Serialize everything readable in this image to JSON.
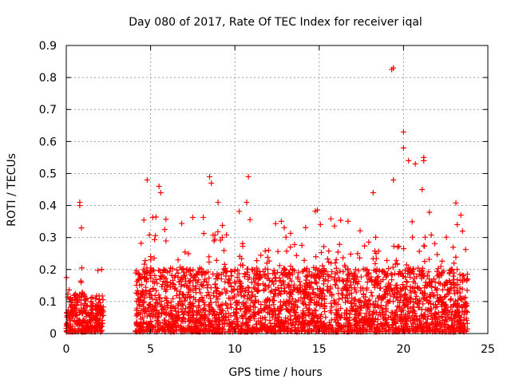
{
  "chart_data": {
    "type": "scatter",
    "title": "Day 080 of 2017, Rate Of TEC Index for receiver iqal",
    "xlabel": "GPS time / hours",
    "ylabel": "ROTI / TECUs",
    "xlim": [
      0,
      25
    ],
    "ylim": [
      0,
      0.9
    ],
    "x_ticks": [
      0,
      5,
      10,
      15,
      20,
      25
    ],
    "x_tick_labels": [
      "0",
      "5",
      "10",
      "15",
      "20",
      "25"
    ],
    "y_ticks": [
      0,
      0.1,
      0.2,
      0.3,
      0.4,
      0.5,
      0.6,
      0.7,
      0.8,
      0.9
    ],
    "y_tick_labels": [
      "0",
      "0.1",
      "0.2",
      "0.3",
      "0.4",
      "0.5",
      "0.6",
      "0.7",
      "0.8",
      "0.9"
    ],
    "grid": true,
    "marker": "+",
    "color": "#ff0000",
    "series": [
      {
        "name": "ROTI",
        "segments": [
          {
            "x_start": 0.0,
            "x_end": 2.2,
            "typical_max": 0.12
          },
          {
            "x_start": 4.1,
            "x_end": 23.8,
            "typical_max": 0.2
          }
        ],
        "notable_points": [
          [
            0.8,
            0.41
          ],
          [
            0.8,
            0.4
          ],
          [
            0.9,
            0.33
          ],
          [
            2.1,
            0.2
          ],
          [
            4.8,
            0.48
          ],
          [
            5.5,
            0.46
          ],
          [
            5.6,
            0.44
          ],
          [
            8.5,
            0.49
          ],
          [
            8.6,
            0.47
          ],
          [
            9.0,
            0.41
          ],
          [
            10.8,
            0.49
          ],
          [
            10.7,
            0.41
          ],
          [
            12.0,
            0.26
          ],
          [
            11.9,
            0.22
          ],
          [
            14.8,
            0.24
          ],
          [
            15.7,
            0.22
          ],
          [
            18.2,
            0.44
          ],
          [
            19.4,
            0.83
          ],
          [
            19.3,
            0.825
          ],
          [
            19.4,
            0.48
          ],
          [
            20.0,
            0.63
          ],
          [
            20.0,
            0.58
          ],
          [
            20.3,
            0.54
          ],
          [
            20.7,
            0.53
          ],
          [
            21.2,
            0.55
          ],
          [
            21.2,
            0.54
          ],
          [
            21.1,
            0.45
          ],
          [
            23.4,
            0.37
          ],
          [
            23.5,
            0.32
          ]
        ]
      }
    ]
  }
}
